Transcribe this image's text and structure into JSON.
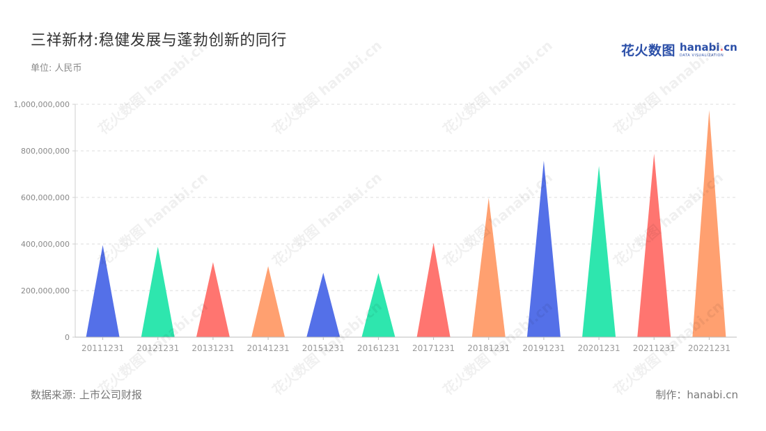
{
  "title": "三祥新材:稳健发展与蓬勃创新的同行",
  "unit": "单位: 人民币",
  "logo": {
    "cn": "花火数图",
    "en_pre": "hanabi",
    "en_dot": ".",
    "en_post": "cn",
    "en_sub": "DATA VISUALIZATION"
  },
  "source": "数据来源: 上市公司财报",
  "maker": "制作：hanabi.cn",
  "watermark": {
    "cn": "花火数图",
    "en": "hanabi.cn"
  },
  "colors": [
    "#5470e8",
    "#2ee6ae",
    "#ff7570",
    "#ffa070"
  ],
  "chart_data": {
    "type": "bar",
    "shape": "triangle",
    "categories": [
      "20111231",
      "20121231",
      "20131231",
      "20141231",
      "20151231",
      "20161231",
      "20171231",
      "20181231",
      "20191231",
      "20201231",
      "20211231",
      "20221231"
    ],
    "values": [
      395000000,
      388000000,
      322000000,
      305000000,
      277000000,
      275000000,
      405000000,
      598000000,
      758000000,
      735000000,
      788000000,
      975000000
    ],
    "ylim": [
      0,
      1000000000
    ],
    "yticks": [
      "0",
      "200,000,000",
      "400,000,000",
      "600,000,000",
      "800,000,000",
      "1,000,000,000"
    ],
    "ytick_values": [
      0,
      200000000,
      400000000,
      600000000,
      800000000,
      1000000000
    ],
    "xlabel": "",
    "ylabel": "",
    "grid": true
  }
}
